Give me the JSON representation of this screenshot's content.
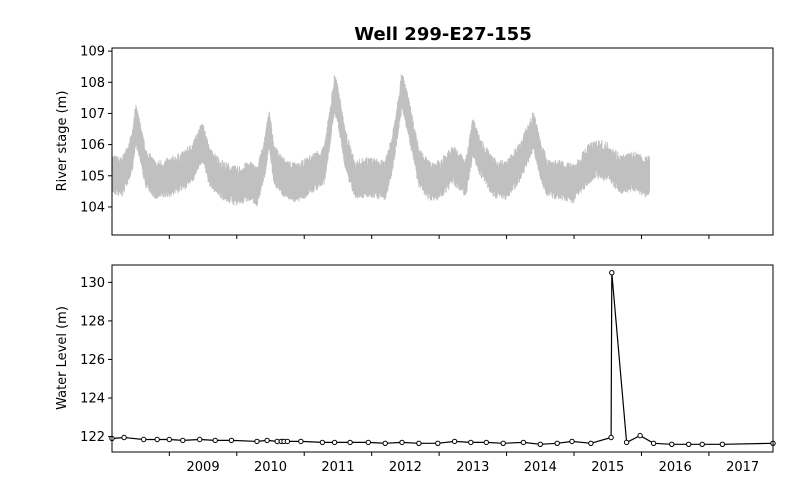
{
  "chart_data": [
    {
      "type": "line",
      "title": "Well 299-E27-155",
      "xlabel": "",
      "ylabel": "River stage (m)",
      "xlim": [
        2008.15,
        2017.95
      ],
      "ylim": [
        103.1,
        109.1
      ],
      "yticks": [
        104,
        105,
        106,
        107,
        108,
        109
      ],
      "grid": false,
      "series": [
        {
          "color": "#c0c0c0",
          "x": [
            2008.15,
            2008.3,
            2008.45,
            2008.5,
            2008.55,
            2008.65,
            2008.8,
            2009.0,
            2009.2,
            2009.35,
            2009.45,
            2009.5,
            2009.6,
            2009.8,
            2010.0,
            2010.2,
            2010.3,
            2010.42,
            2010.48,
            2010.55,
            2010.7,
            2010.9,
            2011.1,
            2011.3,
            2011.45,
            2011.5,
            2011.6,
            2011.75,
            2011.9,
            2012.0,
            2012.2,
            2012.3,
            2012.45,
            2012.55,
            2012.7,
            2012.85,
            2013.0,
            2013.2,
            2013.4,
            2013.5,
            2013.6,
            2013.8,
            2014.0,
            2014.2,
            2014.4,
            2014.5,
            2014.6,
            2014.8,
            2015.0,
            2015.2,
            2015.3,
            2015.5,
            2015.7,
            2015.9,
            2016.05,
            2016.12
          ],
          "y": [
            105.0,
            104.9,
            105.7,
            106.6,
            106.2,
            105.2,
            104.8,
            104.9,
            105.1,
            105.4,
            105.9,
            106.0,
            105.2,
            104.8,
            104.6,
            104.8,
            104.6,
            105.6,
            106.5,
            105.3,
            104.9,
            104.7,
            105.0,
            105.3,
            107.6,
            107.2,
            105.9,
            104.8,
            104.9,
            104.9,
            104.8,
            105.6,
            107.7,
            106.8,
            105.2,
            104.8,
            104.8,
            105.3,
            104.9,
            106.2,
            105.6,
            104.9,
            104.8,
            105.4,
            106.4,
            105.5,
            104.9,
            104.8,
            104.7,
            105.3,
            105.5,
            105.4,
            105.0,
            105.1,
            104.9,
            105.0
          ]
        }
      ]
    },
    {
      "type": "line",
      "title": "",
      "xlabel": "",
      "ylabel": "Water Level (m)",
      "xlim": [
        2008.15,
        2017.95
      ],
      "ylim": [
        121.2,
        130.9
      ],
      "yticks": [
        122,
        124,
        126,
        128,
        130
      ],
      "xticks": [
        "2009",
        "2010",
        "2011",
        "2012",
        "2013",
        "2014",
        "2015",
        "2016",
        "2017"
      ],
      "grid": false,
      "series": [
        {
          "color": "#000000",
          "markers": "open-circle",
          "x": [
            2008.15,
            2008.33,
            2008.62,
            2008.82,
            2009.0,
            2009.2,
            2009.45,
            2009.68,
            2009.92,
            2010.3,
            2010.45,
            2010.6,
            2010.66,
            2010.7,
            2010.75,
            2010.95,
            2011.27,
            2011.45,
            2011.68,
            2011.95,
            2012.2,
            2012.45,
            2012.7,
            2012.98,
            2013.23,
            2013.47,
            2013.7,
            2013.95,
            2014.25,
            2014.5,
            2014.75,
            2014.97,
            2015.25,
            2015.55,
            2015.56,
            2015.78,
            2015.98,
            2016.18,
            2016.45,
            2016.7,
            2016.9,
            2017.2,
            2017.95
          ],
          "y": [
            121.9,
            121.95,
            121.85,
            121.85,
            121.85,
            121.8,
            121.85,
            121.8,
            121.8,
            121.75,
            121.8,
            121.75,
            121.75,
            121.75,
            121.75,
            121.75,
            121.7,
            121.7,
            121.7,
            121.7,
            121.65,
            121.7,
            121.65,
            121.65,
            121.75,
            121.7,
            121.7,
            121.65,
            121.7,
            121.6,
            121.65,
            121.75,
            121.65,
            121.95,
            130.5,
            121.7,
            122.05,
            121.65,
            121.6,
            121.6,
            121.6,
            121.6,
            121.65
          ]
        }
      ]
    }
  ]
}
